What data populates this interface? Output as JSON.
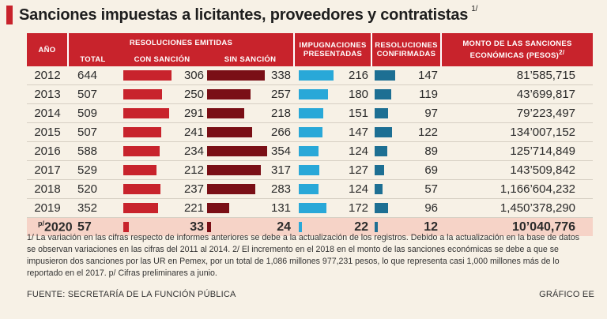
{
  "title": "Sanciones impuestas a licitantes, proveedores y contratistas",
  "title_note": "1/",
  "headers": {
    "year": "AÑO",
    "resoluciones_emitidas": "RESOLUCIONES EMITIDAS",
    "total": "TOTAL",
    "con_sancion": "CON SANCIÓN",
    "sin_sancion": "SIN SANCIÓN",
    "impugnaciones": [
      "IMPUGNACIONES",
      "PRESENTADAS"
    ],
    "confirmadas": [
      "RESOLUCIONES",
      "CONFIRMADAS"
    ],
    "monto": [
      "MONTO DE LAS SANCIONES",
      "ECONÓMICAS (PESOS)"
    ],
    "monto_note": "2/"
  },
  "colors": {
    "con_sancion": "#c8232c",
    "sin_sancion": "#7a0f16",
    "impugnaciones": "#29a8d8",
    "confirmadas": "#1d6f93",
    "header": "#c8232c",
    "highlight_row": "#f6d3c7"
  },
  "chart_data": {
    "type": "table",
    "columns": [
      "Año",
      "Total",
      "Con sanción",
      "Sin sanción",
      "Impugnaciones presentadas",
      "Resoluciones confirmadas",
      "Monto de las sanciones económicas (pesos)"
    ],
    "bar_scale": {
      "con_sancion_max": 354,
      "sin_sancion_max": 354,
      "impugnaciones_max": 216,
      "confirmadas_max": 147
    },
    "rows": [
      {
        "year": "2012",
        "total": "644",
        "con": 306,
        "sin": 338,
        "imp": 216,
        "conf": 147,
        "monto": "81’585,715"
      },
      {
        "year": "2013",
        "total": "507",
        "con": 250,
        "sin": 257,
        "imp": 180,
        "conf": 119,
        "monto": "43’699,817"
      },
      {
        "year": "2014",
        "total": "509",
        "con": 291,
        "sin": 218,
        "imp": 151,
        "conf": 97,
        "monto": "79’223,497"
      },
      {
        "year": "2015",
        "total": "507",
        "con": 241,
        "sin": 266,
        "imp": 147,
        "conf": 122,
        "monto": "134’007,152"
      },
      {
        "year": "2016",
        "total": "588",
        "con": 234,
        "sin": 354,
        "imp": 124,
        "conf": 89,
        "monto": "125’714,849"
      },
      {
        "year": "2017",
        "total": "529",
        "con": 212,
        "sin": 317,
        "imp": 127,
        "conf": 69,
        "monto": "143’509,842"
      },
      {
        "year": "2018",
        "total": "520",
        "con": 237,
        "sin": 283,
        "imp": 124,
        "conf": 57,
        "monto": "1,166’604,232"
      },
      {
        "year": "2019",
        "total": "352",
        "con": 221,
        "sin": 131,
        "imp": 172,
        "conf": 96,
        "monto": "1,450’378,290"
      },
      {
        "year": "2020",
        "year_prefix": "p/",
        "total": "57",
        "con": 33,
        "sin": 24,
        "imp": 22,
        "conf": 12,
        "monto": "10’040,776"
      }
    ]
  },
  "notes": "1/ La variación en las cifras respecto de informes anteriores se debe a la actualización de los registros. Debido a la actualización en la base de datos se observan variaciones en las cifras del 2011 al 2014. 2/ El incremento en el 2018 en el monto de las sanciones económicas se debe a que se impusieron dos sanciones por las UR en Pemex, por un total de 1,086 millones 977,231 pesos, lo que representa casi 1,000 millones más de lo reportado en el 2017. p/ Cifras preliminares a junio.",
  "source": "FUENTE: SECRETARÍA DE LA FUNCIÓN PÚBLICA",
  "credit": "GRÁFICO EE"
}
